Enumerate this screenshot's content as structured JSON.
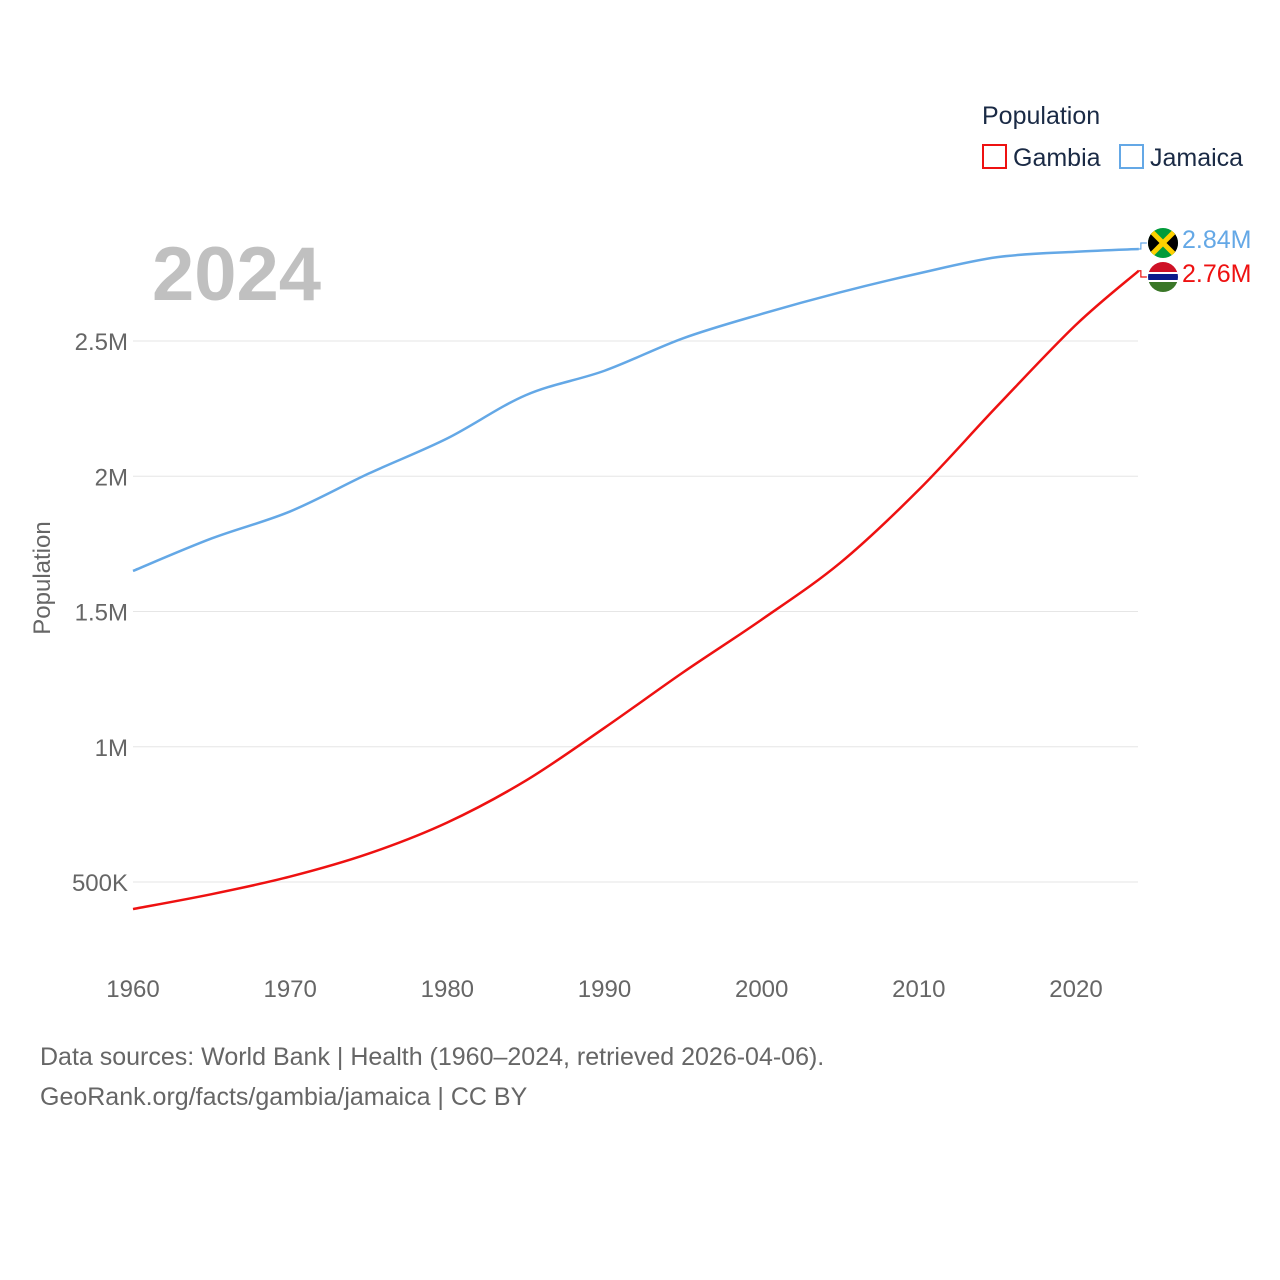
{
  "chart_data": {
    "type": "line",
    "year_label": "2024",
    "ylabel": "Population",
    "xlabel": "",
    "xlim": [
      1960,
      2024
    ],
    "ylim": [
      300000,
      2900000
    ],
    "x_ticks": [
      1960,
      1970,
      1980,
      1990,
      2000,
      2010,
      2020
    ],
    "y_ticks": [
      {
        "value": 500000,
        "label": "500K"
      },
      {
        "value": 1000000,
        "label": "1M"
      },
      {
        "value": 1500000,
        "label": "1.5M"
      },
      {
        "value": 2000000,
        "label": "2M"
      },
      {
        "value": 2500000,
        "label": "2.5M"
      }
    ],
    "legend": {
      "title": "Population",
      "placement": "top-right"
    },
    "series": [
      {
        "name": "Gambia",
        "color": "#ee1111",
        "end_label": "2.76M",
        "flag": "gambia-flag",
        "x": [
          1960,
          1965,
          1970,
          1975,
          1980,
          1985,
          1990,
          1995,
          2000,
          2005,
          2010,
          2015,
          2020,
          2024
        ],
        "values": [
          400000,
          455000,
          520000,
          605000,
          720000,
          875000,
          1070000,
          1275000,
          1470000,
          1680000,
          1950000,
          2260000,
          2560000,
          2760000
        ]
      },
      {
        "name": "Jamaica",
        "color": "#64a8e6",
        "end_label": "2.84M",
        "flag": "jamaica-flag",
        "x": [
          1960,
          1965,
          1970,
          1975,
          1980,
          1985,
          1990,
          1995,
          2000,
          2005,
          2010,
          2015,
          2020,
          2024
        ],
        "values": [
          1650000,
          1770000,
          1870000,
          2010000,
          2140000,
          2300000,
          2390000,
          2510000,
          2600000,
          2680000,
          2750000,
          2810000,
          2830000,
          2840000
        ]
      }
    ]
  },
  "source": {
    "line1": "Data sources: World Bank | Health (1960–2024, retrieved 2026-04-06).",
    "line2": "GeoRank.org/facts/gambia/jamaica | CC BY"
  }
}
